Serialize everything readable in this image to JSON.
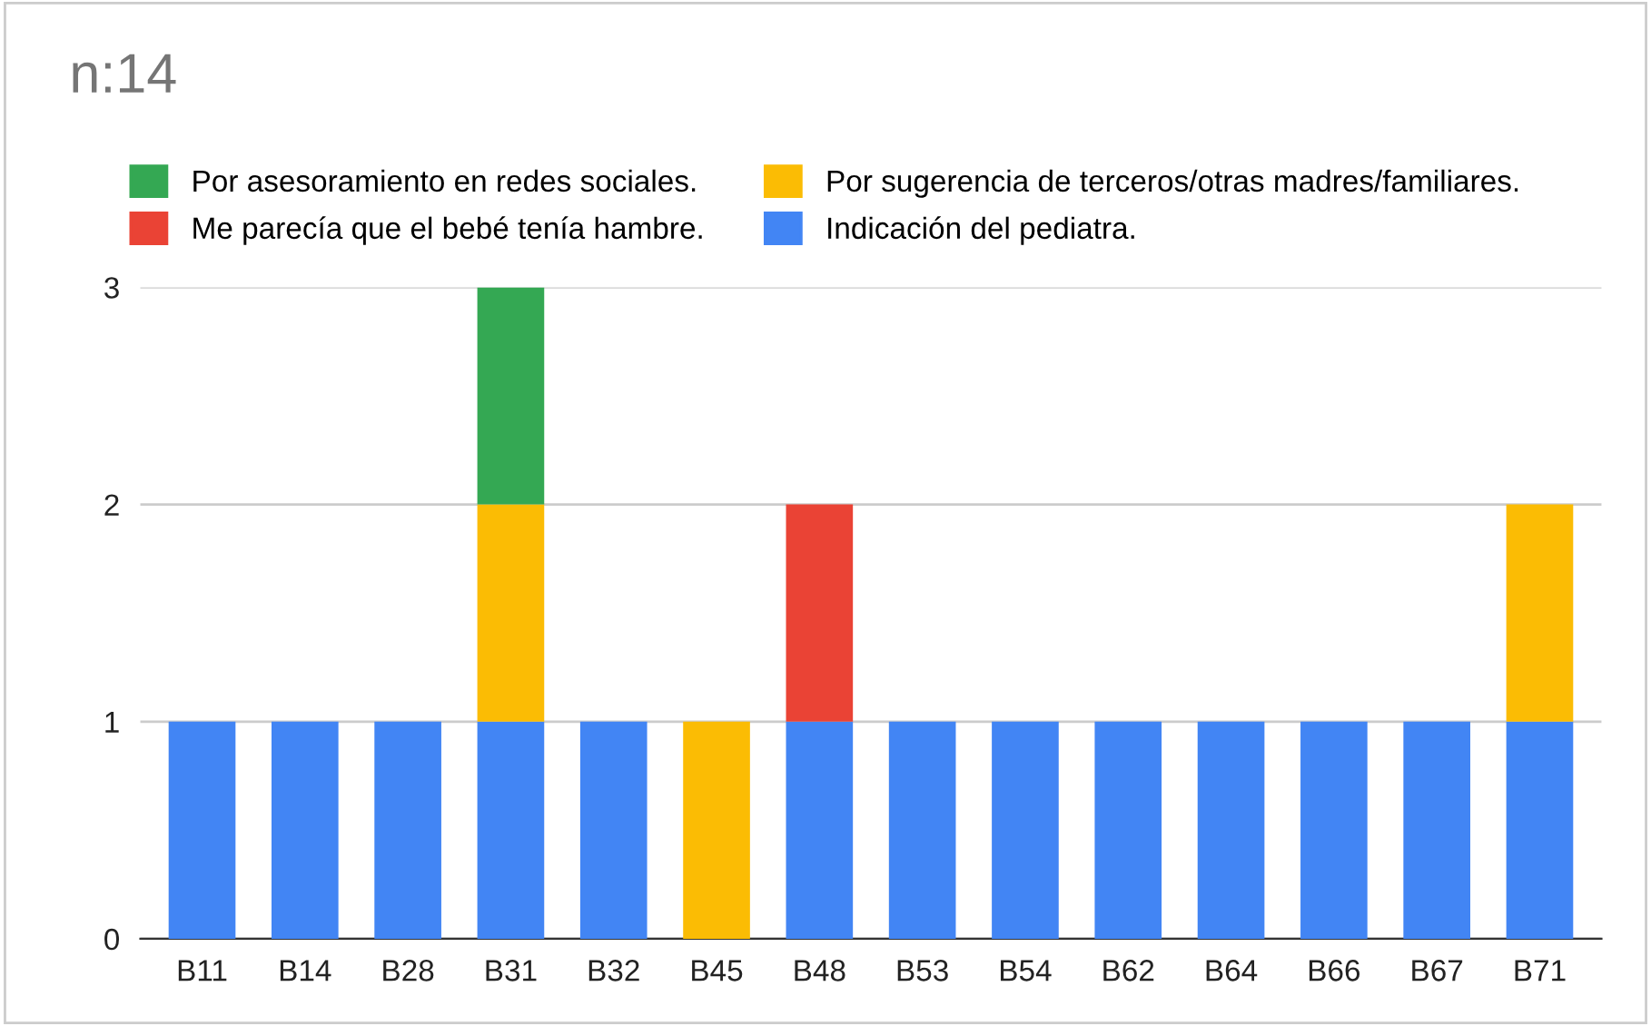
{
  "chart_data": {
    "type": "bar",
    "title": "n:14",
    "stacked": true,
    "categories": [
      "B11",
      "B14",
      "B28",
      "B31",
      "B32",
      "B45",
      "B48",
      "B53",
      "B54",
      "B62",
      "B64",
      "B66",
      "B67",
      "B71"
    ],
    "series": [
      {
        "name": "Indicación del pediatra.",
        "color": "#4285f4",
        "values": [
          1,
          1,
          1,
          1,
          1,
          null,
          1,
          1,
          1,
          1,
          1,
          1,
          1,
          1
        ]
      },
      {
        "name": "Me parecía que el bebé tenía hambre.",
        "color": "#ea4335",
        "values": [
          null,
          null,
          null,
          null,
          null,
          null,
          1,
          null,
          null,
          null,
          null,
          null,
          null,
          null
        ]
      },
      {
        "name": "Por sugerencia de terceros/otras madres/familiares.",
        "color": "#fbbc04",
        "values": [
          null,
          null,
          null,
          1,
          null,
          1,
          null,
          null,
          null,
          null,
          null,
          null,
          null,
          1
        ]
      },
      {
        "name": "Por asesoramiento en redes sociales.",
        "color": "#34a853",
        "values": [
          null,
          null,
          null,
          1,
          null,
          null,
          null,
          null,
          null,
          null,
          null,
          null,
          null,
          null
        ]
      }
    ],
    "ylim": [
      0,
      3
    ],
    "yticks": [
      0,
      1,
      2,
      3
    ],
    "grid": "y",
    "legend": "top"
  }
}
